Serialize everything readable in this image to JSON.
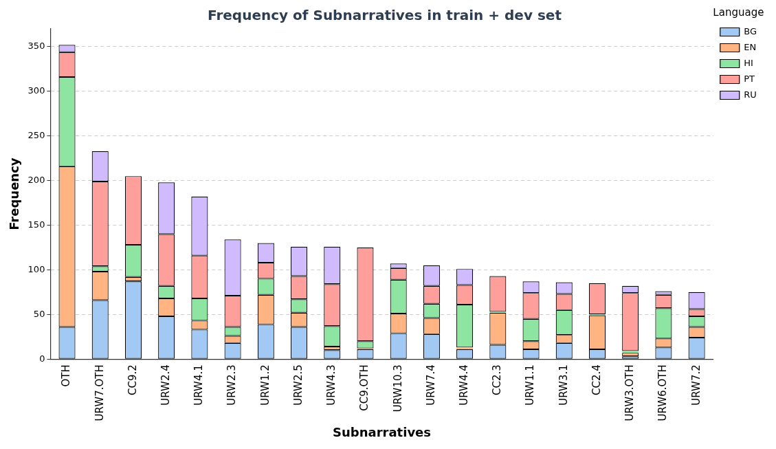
{
  "chart_data": {
    "type": "bar",
    "title": "Frequency of Subnarratives in train + dev set",
    "xlabel": "Subnarratives",
    "ylabel": "Frequency",
    "legend_title": "Language",
    "legend": "top right",
    "grid": "y",
    "stacked": true,
    "categories": [
      "OTH",
      "URW7.OTH",
      "CC9.2",
      "URW2.4",
      "URW4.1",
      "URW2.3",
      "URW1.2",
      "URW2.5",
      "URW4.3",
      "CC9.OTH",
      "URW10.3",
      "URW7.4",
      "URW4.4",
      "CC2.3",
      "URW1.1",
      "URW3.1",
      "CC2.4",
      "URW3.OTH",
      "URW6.OTH",
      "URW7.2"
    ],
    "ylim": [
      0,
      370
    ],
    "yticks": [
      0,
      50,
      100,
      150,
      200,
      250,
      300,
      350
    ],
    "series": [
      {
        "name": "BG",
        "color": "#a1c9f4",
        "values": [
          36,
          66,
          87,
          48,
          33,
          18,
          39,
          36,
          10,
          11,
          29,
          28,
          11,
          16,
          11,
          18,
          11,
          3,
          13,
          24
        ]
      },
      {
        "name": "EN",
        "color": "#ffb482",
        "values": [
          180,
          32,
          5,
          20,
          10,
          8,
          33,
          16,
          4,
          1,
          22,
          18,
          2,
          36,
          9,
          9,
          38,
          4,
          10,
          12
        ]
      },
      {
        "name": "HI",
        "color": "#8de5a1",
        "values": [
          100,
          6,
          36,
          14,
          25,
          10,
          18,
          15,
          23,
          8,
          38,
          16,
          48,
          1,
          25,
          28,
          1,
          2,
          34,
          12
        ]
      },
      {
        "name": "PT",
        "color": "#ff9f9b",
        "values": [
          28,
          95,
          77,
          58,
          48,
          35,
          18,
          26,
          47,
          105,
          13,
          20,
          22,
          40,
          29,
          18,
          35,
          65,
          15,
          8
        ]
      },
      {
        "name": "RU",
        "color": "#d0bbff",
        "values": [
          8,
          34,
          0,
          58,
          66,
          63,
          22,
          33,
          42,
          0,
          5,
          23,
          18,
          0,
          13,
          13,
          0,
          8,
          4,
          19
        ]
      }
    ]
  }
}
